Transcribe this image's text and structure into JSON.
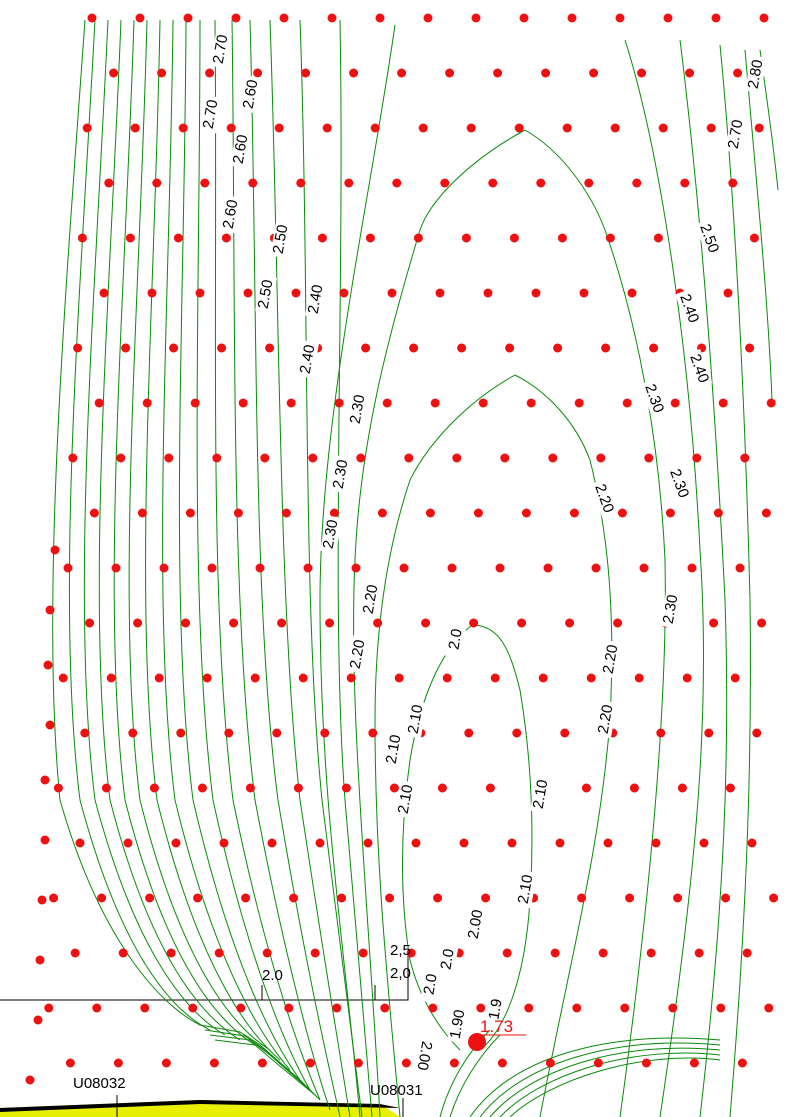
{
  "map": {
    "contour_labels": [
      "2.70",
      "2.70",
      "2.60",
      "2.60",
      "2.60",
      "2.50",
      "2.50",
      "2.40",
      "2.40",
      "2.30",
      "2.30",
      "2.30",
      "2.20",
      "2.20",
      "2.10",
      "2.10",
      "2.10",
      "2.0",
      "2.80",
      "2.70",
      "2.50",
      "2.40",
      "2.40",
      "2.30",
      "2.30",
      "2.20",
      "2.30",
      "2.20",
      "2.20",
      "2.10",
      "2.10",
      "2.0",
      "2.0",
      "2.00",
      "1.90",
      "1.9",
      "2.00"
    ],
    "section_marks": [
      "2.0",
      "2,5",
      "2,0"
    ],
    "stations": [
      "U08032",
      "U08031"
    ],
    "spot_height": "1.73",
    "colors": {
      "contour": "#0a8a0a",
      "survey_point": "#ee1111",
      "road_band": "#e8f000"
    }
  }
}
